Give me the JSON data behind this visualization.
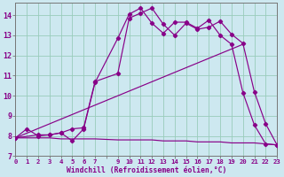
{
  "bg_color": "#cde8f0",
  "line_color": "#880088",
  "grid_color": "#99ccbb",
  "xlabel": "Windchill (Refroidissement éolien,°C)",
  "xlim": [
    0,
    23
  ],
  "ylim": [
    7,
    14.6
  ],
  "yticks": [
    7,
    8,
    9,
    10,
    11,
    12,
    13,
    14
  ],
  "xtick_labels": [
    "0",
    "1",
    "2",
    "3",
    "4",
    "5",
    "6",
    "7",
    "",
    "9",
    "10",
    "11",
    "12",
    "13",
    "14",
    "15",
    "16",
    "17",
    "18",
    "19",
    "20",
    "21",
    "22",
    "23"
  ],
  "line1_x": [
    0,
    1,
    2,
    3,
    4,
    5,
    6,
    7,
    9,
    10,
    11,
    12,
    13,
    14,
    15,
    16,
    17,
    18,
    19,
    20,
    21,
    22,
    23
  ],
  "line1_y": [
    7.9,
    8.35,
    8.0,
    8.05,
    8.15,
    7.75,
    8.35,
    10.65,
    12.85,
    14.05,
    14.35,
    13.6,
    13.1,
    13.65,
    13.65,
    13.35,
    13.75,
    13.0,
    12.55,
    10.15,
    8.55,
    7.6,
    7.55
  ],
  "line2_x": [
    0,
    2,
    3,
    4,
    5,
    6,
    7,
    9,
    10,
    11,
    12,
    13,
    14,
    15,
    16,
    17,
    18,
    19,
    20,
    21,
    22,
    23
  ],
  "line2_y": [
    7.9,
    8.05,
    8.05,
    8.15,
    8.35,
    8.4,
    10.7,
    11.1,
    13.85,
    14.1,
    14.35,
    13.55,
    13.0,
    13.6,
    13.3,
    13.4,
    13.7,
    13.05,
    12.6,
    10.2,
    8.6,
    7.55
  ],
  "line3_x": [
    0,
    20
  ],
  "line3_y": [
    7.9,
    12.55
  ],
  "line4_x": [
    0,
    3,
    4,
    5,
    6,
    7,
    9,
    10,
    11,
    12,
    13,
    14,
    15,
    16,
    17,
    18,
    19,
    20,
    21,
    22,
    23
  ],
  "line4_y": [
    7.9,
    7.9,
    7.85,
    7.85,
    7.85,
    7.85,
    7.8,
    7.8,
    7.8,
    7.8,
    7.75,
    7.75,
    7.75,
    7.7,
    7.7,
    7.7,
    7.65,
    7.65,
    7.65,
    7.6,
    7.55
  ]
}
